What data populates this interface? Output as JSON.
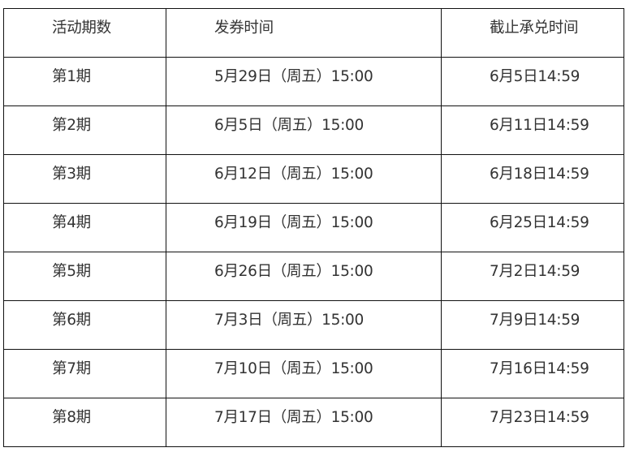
{
  "headers": [
    "活动期数",
    "发券时间",
    "截止承兑时间"
  ],
  "rows": [
    [
      "第1期",
      "5月29日（周五）15:00",
      "6月5日14:59"
    ],
    [
      "第2期",
      "6月5日（周五）15:00",
      "6月11日14:59"
    ],
    [
      "第3期",
      "6月12日（周五）15:00",
      "6月18日14:59"
    ],
    [
      "第4期",
      "6月19日（周五）15:00",
      "6月25日14:59"
    ],
    [
      "第5期",
      "6月26日（周五）15:00",
      "7月2日14:59"
    ],
    [
      "第6期",
      "7月3日（周五）15:00",
      "7月9日14:59"
    ],
    [
      "第7期",
      "7月10日（周五）15:00",
      "7月16日14:59"
    ],
    [
      "第8期",
      "7月17日（周五）15:00",
      "7月23日14:59"
    ]
  ]
}
